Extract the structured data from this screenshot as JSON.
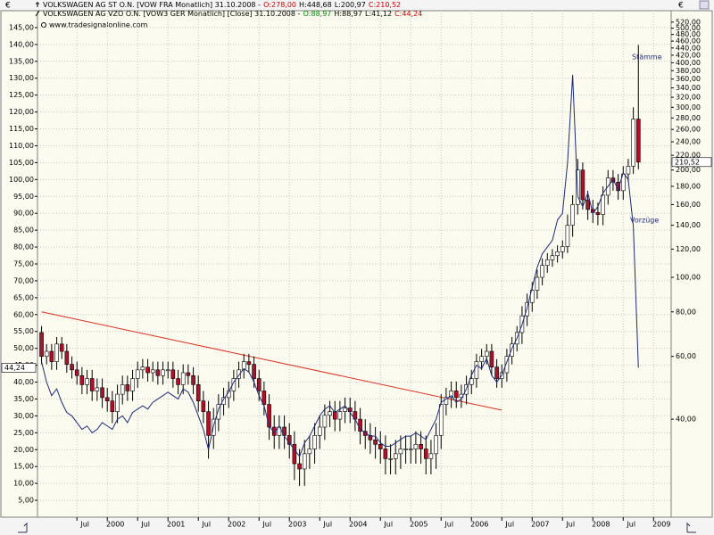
{
  "chart_data": {
    "type": "candlestick",
    "y_unit": "€",
    "y2_unit": "€",
    "source": "www.tradesignalonline.com",
    "x": [
      1998.917,
      1999.0,
      1999.083,
      1999.167,
      1999.25,
      1999.333,
      1999.417,
      1999.5,
      1999.583,
      1999.667,
      1999.75,
      1999.833,
      1999.917,
      2000.0,
      2000.083,
      2000.167,
      2000.25,
      2000.333,
      2000.417,
      2000.5,
      2000.583,
      2000.667,
      2000.75,
      2000.833,
      2000.917,
      2001.0,
      2001.083,
      2001.167,
      2001.25,
      2001.333,
      2001.417,
      2001.5,
      2001.583,
      2001.667,
      2001.75,
      2001.833,
      2001.917,
      2002.0,
      2002.083,
      2002.167,
      2002.25,
      2002.333,
      2002.417,
      2002.5,
      2002.583,
      2002.667,
      2002.75,
      2002.833,
      2002.917,
      2003.0,
      2003.083,
      2003.167,
      2003.25,
      2003.333,
      2003.417,
      2003.5,
      2003.583,
      2003.667,
      2003.75,
      2003.833,
      2003.917,
      2004.0,
      2004.083,
      2004.167,
      2004.25,
      2004.333,
      2004.417,
      2004.5,
      2004.583,
      2004.667,
      2004.75,
      2004.833,
      2004.917,
      2005.0,
      2005.083,
      2005.167,
      2005.25,
      2005.333,
      2005.417,
      2005.5,
      2005.583,
      2005.667,
      2005.75,
      2005.833,
      2005.917,
      2006.0,
      2006.083,
      2006.167,
      2006.25,
      2006.333,
      2006.417,
      2006.5,
      2006.583,
      2006.667,
      2006.75,
      2006.833,
      2006.917,
      2007.0,
      2007.083,
      2007.167,
      2007.25,
      2007.333,
      2007.417,
      2007.5,
      2007.583,
      2007.667,
      2007.75,
      2007.833,
      2007.917,
      2008.0,
      2008.083,
      2008.167,
      2008.25,
      2008.333,
      2008.417,
      2008.5,
      2008.583,
      2008.667,
      2008.75
    ],
    "series": [
      {
        "name": "VOLKSWAGEN AG ST O.N.  [VOW FRA  Monatlich] 31.10.2008 -",
        "quote": [
          "O:278,00",
          "H:448,68",
          "L:200,97",
          "C:210,52"
        ],
        "quote_colors": [
          "#cc0000",
          "#000000",
          "#000000",
          "#cc0000"
        ],
        "type": "candlestick",
        "axis": "y2",
        "up_color": "#ffffff",
        "down_color": "#b0102a",
        "last_label": "210,52",
        "open": [
          70,
          60,
          62,
          58,
          65,
          62,
          57,
          55,
          53,
          50,
          52,
          48,
          49,
          46,
          45,
          42,
          47,
          50,
          48,
          52,
          55,
          56,
          54,
          55,
          53,
          55,
          55,
          52,
          50,
          54,
          53,
          50,
          45,
          42,
          36,
          40,
          44,
          46,
          48,
          52,
          55,
          58,
          57,
          52,
          48,
          44,
          38,
          36,
          38,
          36,
          34,
          30,
          29,
          32,
          33,
          36,
          38,
          41,
          42,
          40,
          42,
          43,
          42,
          40,
          37,
          36,
          35,
          34,
          33,
          31,
          31,
          32,
          33,
          33,
          33,
          34,
          33,
          31,
          32,
          36,
          44,
          46,
          48,
          46,
          47,
          50,
          52,
          58,
          60,
          62,
          56,
          52,
          54,
          60,
          65,
          70,
          78,
          85,
          92,
          100,
          108,
          112,
          115,
          118,
          122,
          140,
          160,
          200,
          165,
          155,
          152,
          150,
          170,
          190,
          185,
          175,
          195,
          205,
          278
        ],
        "high": [
          73,
          65,
          65,
          68,
          68,
          65,
          60,
          58,
          56,
          55,
          55,
          52,
          52,
          49,
          48,
          50,
          53,
          53,
          55,
          58,
          59,
          59,
          58,
          58,
          58,
          58,
          58,
          55,
          57,
          57,
          56,
          53,
          48,
          45,
          43,
          47,
          49,
          51,
          55,
          58,
          61,
          61,
          60,
          55,
          51,
          47,
          41,
          41,
          41,
          39,
          37,
          33,
          35,
          36,
          39,
          41,
          44,
          45,
          45,
          45,
          46,
          46,
          45,
          43,
          40,
          39,
          38,
          37,
          36,
          34,
          35,
          36,
          36,
          36,
          37,
          37,
          36,
          35,
          39,
          47,
          49,
          51,
          51,
          50,
          53,
          55,
          61,
          63,
          65,
          65,
          59,
          57,
          63,
          68,
          73,
          83,
          90,
          97,
          105,
          113,
          117,
          120,
          123,
          127,
          150,
          170,
          215,
          210,
          175,
          165,
          162,
          180,
          200,
          200,
          195,
          205,
          215,
          300,
          448.68
        ],
        "low": [
          57,
          57,
          55,
          55,
          59,
          54,
          52,
          50,
          47,
          47,
          45,
          45,
          43,
          42,
          39,
          39,
          44,
          45,
          45,
          49,
          52,
          51,
          51,
          50,
          50,
          52,
          49,
          47,
          47,
          50,
          47,
          42,
          39,
          31,
          33,
          37,
          41,
          43,
          45,
          49,
          52,
          54,
          49,
          45,
          41,
          35,
          33,
          33,
          33,
          31,
          27,
          26,
          26,
          29,
          30,
          33,
          35,
          38,
          37,
          37,
          39,
          39,
          37,
          34,
          33,
          32,
          31,
          30,
          28,
          28,
          28,
          29,
          30,
          30,
          30,
          30,
          28,
          28,
          29,
          33,
          41,
          43,
          43,
          43,
          44,
          47,
          49,
          55,
          57,
          53,
          49,
          49,
          51,
          57,
          62,
          65,
          73,
          80,
          87,
          95,
          103,
          107,
          110,
          113,
          117,
          130,
          150,
          155,
          145,
          142,
          140,
          140,
          160,
          175,
          165,
          165,
          185,
          195,
          200.97
        ],
        "close": [
          60,
          62,
          58,
          65,
          62,
          57,
          55,
          53,
          50,
          52,
          48,
          49,
          46,
          45,
          42,
          47,
          50,
          48,
          52,
          55,
          56,
          54,
          55,
          53,
          55,
          55,
          52,
          50,
          54,
          53,
          50,
          45,
          42,
          36,
          40,
          44,
          46,
          48,
          52,
          55,
          58,
          57,
          52,
          48,
          44,
          38,
          36,
          38,
          36,
          34,
          30,
          29,
          32,
          33,
          36,
          38,
          41,
          42,
          40,
          42,
          43,
          42,
          40,
          37,
          36,
          35,
          34,
          33,
          31,
          31,
          32,
          33,
          33,
          33,
          34,
          33,
          31,
          32,
          36,
          44,
          46,
          48,
          46,
          47,
          50,
          52,
          58,
          60,
          62,
          56,
          52,
          54,
          60,
          65,
          70,
          78,
          85,
          92,
          100,
          108,
          112,
          115,
          118,
          122,
          140,
          160,
          200,
          165,
          155,
          152,
          150,
          170,
          190,
          185,
          175,
          195,
          205,
          278,
          210.52
        ]
      },
      {
        "name": "VOLKSWAGEN AG VZO O.N.  [VOW3 GER  Monatlich] [Close] 31.10.2008 -",
        "quote": [
          "O:88,97",
          "H:88,97",
          "L:41,12",
          "C:44,24"
        ],
        "quote_colors": [
          "#008800",
          "#000000",
          "#000000",
          "#cc0000"
        ],
        "type": "line",
        "axis": "y",
        "color": "#1c2a7a",
        "last_label": "44,24",
        "values": [
          46,
          40,
          36,
          38,
          34,
          31,
          30,
          28,
          26,
          27,
          25,
          26,
          28,
          27,
          26,
          29,
          30,
          28,
          31,
          32,
          33,
          32,
          34,
          35,
          36,
          37,
          36,
          35,
          38,
          37,
          34,
          30,
          26,
          20,
          27,
          32,
          35,
          37,
          40,
          42,
          44,
          43,
          40,
          36,
          33,
          27,
          25,
          27,
          24,
          22,
          20,
          18,
          22,
          24,
          27,
          30,
          32,
          33,
          31,
          32,
          33,
          31,
          29,
          26,
          25,
          24,
          24,
          22,
          21,
          21,
          22,
          23,
          24,
          24,
          25,
          24,
          23,
          26,
          29,
          34,
          35,
          36,
          34,
          35,
          38,
          42,
          45,
          44,
          47,
          42,
          40,
          42,
          46,
          50,
          53,
          57,
          62,
          68,
          74,
          78,
          80,
          82,
          88,
          90,
          105,
          131,
          95,
          92,
          96,
          90,
          92,
          96,
          98,
          100,
          97,
          102,
          100,
          86,
          44.24
        ]
      }
    ],
    "trendline": {
      "x": [
        1998.917,
        2006.5
      ],
      "values": [
        60.8,
        31.7
      ],
      "color": "#e03020"
    },
    "annotations": [
      "Stämme",
      "Vorzüge"
    ],
    "xlim": [
      1998.85,
      2009.29
    ],
    "xticks": [
      {
        "value": 1999.5,
        "label": "Jul"
      },
      {
        "value": 2000,
        "label": "2000"
      },
      {
        "value": 2000.5,
        "label": "Jul"
      },
      {
        "value": 2001,
        "label": "2001"
      },
      {
        "value": 2001.5,
        "label": "Jul"
      },
      {
        "value": 2002,
        "label": "2002"
      },
      {
        "value": 2002.5,
        "label": "Jul"
      },
      {
        "value": 2003,
        "label": "2003"
      },
      {
        "value": 2003.5,
        "label": "Jul"
      },
      {
        "value": 2004,
        "label": "2004"
      },
      {
        "value": 2004.5,
        "label": "Jul"
      },
      {
        "value": 2005,
        "label": "2005"
      },
      {
        "value": 2005.5,
        "label": "Jul"
      },
      {
        "value": 2006,
        "label": "2006"
      },
      {
        "value": 2006.5,
        "label": "Jul"
      },
      {
        "value": 2007,
        "label": "2007"
      },
      {
        "value": 2007.5,
        "label": "Jul"
      },
      {
        "value": 2008,
        "label": "2008"
      },
      {
        "value": 2008.5,
        "label": "Jul"
      },
      {
        "value": 2009,
        "label": "2009"
      }
    ],
    "ylim": [
      0,
      150
    ],
    "yticks": [
      {
        "value": 5,
        "label": "5,00"
      },
      {
        "value": 10,
        "label": "10,00"
      },
      {
        "value": 15,
        "label": "15,00"
      },
      {
        "value": 20,
        "label": "20,00"
      },
      {
        "value": 25,
        "label": "25,00"
      },
      {
        "value": 30,
        "label": "30,00"
      },
      {
        "value": 35,
        "label": "35,00"
      },
      {
        "value": 40,
        "label": "40,00"
      },
      {
        "value": 45,
        "label": "45,00"
      },
      {
        "value": 50,
        "label": "50,00"
      },
      {
        "value": 55,
        "label": "55,00"
      },
      {
        "value": 60,
        "label": "60,00"
      },
      {
        "value": 65,
        "label": "65,00"
      },
      {
        "value": 70,
        "label": "70,00"
      },
      {
        "value": 75,
        "label": "75,00"
      },
      {
        "value": 80,
        "label": "80,00"
      },
      {
        "value": 85,
        "label": "85,00"
      },
      {
        "value": 90,
        "label": "90,00"
      },
      {
        "value": 95,
        "label": "95,00"
      },
      {
        "value": 100,
        "label": "100,00"
      },
      {
        "value": 105,
        "label": "105,00"
      },
      {
        "value": 110,
        "label": "110,00"
      },
      {
        "value": 115,
        "label": "115,00"
      },
      {
        "value": 120,
        "label": "120,00"
      },
      {
        "value": 125,
        "label": "125,00"
      },
      {
        "value": 130,
        "label": "130,00"
      },
      {
        "value": 135,
        "label": "135,00"
      },
      {
        "value": 140,
        "label": "140,00"
      },
      {
        "value": 145,
        "label": "145,00"
      }
    ],
    "y2log": true,
    "y2lim": [
      21.24,
      559.8
    ],
    "y2ticks": [
      {
        "value": 40,
        "label": "40,00"
      },
      {
        "value": 60,
        "label": "60,00"
      },
      {
        "value": 80,
        "label": "80,00"
      },
      {
        "value": 100,
        "label": "100,00"
      },
      {
        "value": 120,
        "label": "120,00"
      },
      {
        "value": 140,
        "label": "140,00"
      },
      {
        "value": 160,
        "label": "160,00"
      },
      {
        "value": 180,
        "label": "180,00"
      },
      {
        "value": 200,
        "label": "200,00"
      },
      {
        "value": 220,
        "label": "220,00"
      },
      {
        "value": 240,
        "label": "240,00"
      },
      {
        "value": 260,
        "label": "260,00"
      },
      {
        "value": 280,
        "label": "280,00"
      },
      {
        "value": 300,
        "label": "300,00"
      },
      {
        "value": 320,
        "label": "320,00"
      },
      {
        "value": 340,
        "label": "340,00"
      },
      {
        "value": 360,
        "label": "360,00"
      },
      {
        "value": 380,
        "label": "380,00"
      },
      {
        "value": 400,
        "label": "400,00"
      },
      {
        "value": 420,
        "label": "420,00"
      },
      {
        "value": 440,
        "label": "440,00"
      },
      {
        "value": 460,
        "label": "460,00"
      },
      {
        "value": 480,
        "label": "480,00"
      },
      {
        "value": 500,
        "label": "500,00"
      },
      {
        "value": 520,
        "label": "520,00"
      }
    ],
    "grid": true
  }
}
